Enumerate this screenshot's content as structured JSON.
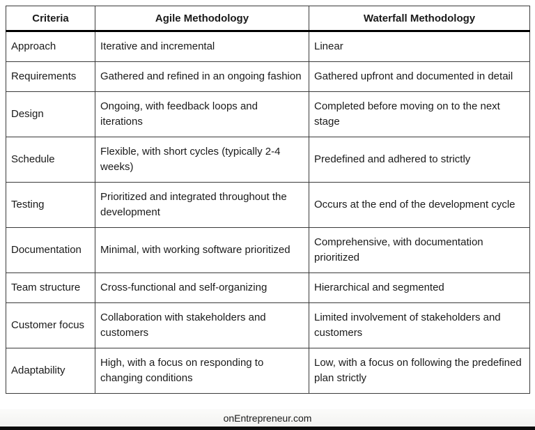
{
  "table": {
    "headers": [
      "Criteria",
      "Agile Methodology",
      "Waterfall Methodology"
    ],
    "rows": [
      {
        "criteria": "Approach",
        "agile": "Iterative and incremental",
        "waterfall": "Linear"
      },
      {
        "criteria": "Requirements",
        "agile": "Gathered and refined in an ongoing fashion",
        "waterfall": "Gathered upfront and documented in detail"
      },
      {
        "criteria": "Design",
        "agile": "Ongoing, with feedback loops and iterations",
        "waterfall": "Completed before moving on to the next stage"
      },
      {
        "criteria": "Schedule",
        "agile": "Flexible, with short cycles (typically 2-4 weeks)",
        "waterfall": "Predefined and adhered to strictly"
      },
      {
        "criteria": "Testing",
        "agile": "Prioritized and integrated throughout the development",
        "waterfall": "Occurs at the end of the development cycle"
      },
      {
        "criteria": "Documentation",
        "agile": "Minimal, with working software prioritized",
        "waterfall": "Comprehensive, with documentation prioritized"
      },
      {
        "criteria": "Team structure",
        "agile": "Cross-functional and self-organizing",
        "waterfall": "Hierarchical and segmented"
      },
      {
        "criteria": "Customer focus",
        "agile": "Collaboration with stakeholders and customers",
        "waterfall": "Limited involvement of stakeholders and customers"
      },
      {
        "criteria": "Adaptability",
        "agile": "High, with a focus on responding to changing conditions",
        "waterfall": "Low, with a focus on following the predefined plan strictly"
      }
    ]
  },
  "footer": {
    "watermark": "onEntrepreneur.com"
  },
  "colors": {
    "cell_border": "#3a3a3a",
    "header_divider": "#000000",
    "text": "#1a1a1a",
    "footer_background": "#f1f1ef",
    "bottom_bar": "#0c0c0c"
  }
}
